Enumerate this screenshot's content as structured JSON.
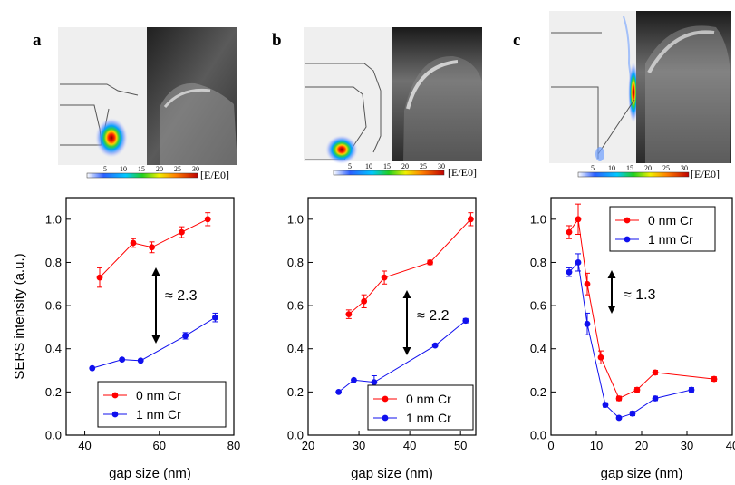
{
  "panels": [
    {
      "letter": "a",
      "colorbar_ticks": [
        "5",
        "10",
        "15",
        "20",
        "25",
        "30"
      ],
      "colorbar_unit": "[E/E0]"
    },
    {
      "letter": "b",
      "colorbar_ticks": [
        "5",
        "10",
        "15",
        "20",
        "25",
        "30"
      ],
      "colorbar_unit": "[E/E0]"
    },
    {
      "letter": "c",
      "colorbar_ticks": [
        "5",
        "10",
        "15",
        "20",
        "25",
        "30"
      ],
      "colorbar_unit": "[E/E0]"
    }
  ],
  "colors": {
    "red": "#ff0000",
    "blue": "#1010ee"
  },
  "chart_data": [
    {
      "type": "line",
      "xlabel": "gap size (nm)",
      "ylabel": "SERS intensity (a.u.)",
      "xlim": [
        35,
        80
      ],
      "ylim": [
        0.0,
        1.1
      ],
      "xticks": [
        40,
        60,
        80
      ],
      "yticks": [
        0.0,
        0.2,
        0.4,
        0.6,
        0.8,
        1.0
      ],
      "annotation": "≈ 2.3",
      "legend_position": "bottom-right",
      "series": [
        {
          "name": "0 nm Cr",
          "color": "red",
          "x": [
            44,
            53,
            58,
            66,
            73
          ],
          "y": [
            0.73,
            0.89,
            0.87,
            0.94,
            1.0
          ],
          "err": [
            0.045,
            0.02,
            0.025,
            0.025,
            0.03
          ]
        },
        {
          "name": "1 nm Cr",
          "color": "blue",
          "x": [
            42,
            50,
            55,
            67,
            75
          ],
          "y": [
            0.31,
            0.35,
            0.345,
            0.46,
            0.545
          ],
          "err": [
            0,
            0,
            0,
            0.015,
            0.02
          ]
        }
      ]
    },
    {
      "type": "line",
      "xlabel": "gap size (nm)",
      "ylabel": "",
      "xlim": [
        20,
        53
      ],
      "ylim": [
        0.0,
        1.1
      ],
      "xticks": [
        20,
        30,
        40,
        50
      ],
      "yticks": [
        0.0,
        0.2,
        0.4,
        0.6,
        0.8,
        1.0
      ],
      "annotation": "≈ 2.2",
      "legend_position": "bottom-right",
      "series": [
        {
          "name": "0 nm Cr",
          "color": "red",
          "x": [
            28,
            31,
            35,
            44,
            52
          ],
          "y": [
            0.56,
            0.62,
            0.73,
            0.8,
            1.0
          ],
          "err": [
            0.02,
            0.03,
            0.03,
            0.01,
            0.03
          ]
        },
        {
          "name": "1 nm Cr",
          "color": "blue",
          "x": [
            26,
            29,
            33,
            45,
            51
          ],
          "y": [
            0.2,
            0.255,
            0.245,
            0.415,
            0.53
          ],
          "err": [
            0,
            0,
            0.03,
            0,
            0.01
          ]
        }
      ]
    },
    {
      "type": "line",
      "xlabel": "gap size (nm)",
      "ylabel": "",
      "xlim": [
        0,
        40
      ],
      "ylim": [
        0.0,
        1.1
      ],
      "xticks": [
        0,
        10,
        20,
        30,
        40
      ],
      "yticks": [
        0.0,
        0.2,
        0.4,
        0.6,
        0.8,
        1.0
      ],
      "annotation": "≈ 1.3",
      "legend_position": "top-right",
      "series": [
        {
          "name": "0 nm Cr",
          "color": "red",
          "x": [
            4,
            6,
            8,
            11,
            15,
            19,
            23,
            36
          ],
          "y": [
            0.94,
            1.0,
            0.7,
            0.36,
            0.17,
            0.21,
            0.29,
            0.26
          ],
          "err": [
            0.03,
            0.07,
            0.05,
            0.03,
            0.01,
            0.01,
            0.01,
            0.01
          ]
        },
        {
          "name": "1 nm Cr",
          "color": "blue",
          "x": [
            4,
            6,
            8,
            12,
            15,
            18,
            23,
            31
          ],
          "y": [
            0.755,
            0.8,
            0.515,
            0.14,
            0.08,
            0.1,
            0.17,
            0.21
          ],
          "err": [
            0.02,
            0.04,
            0.05,
            0.01,
            0.005,
            0.01,
            0.01,
            0.01
          ]
        }
      ]
    }
  ]
}
